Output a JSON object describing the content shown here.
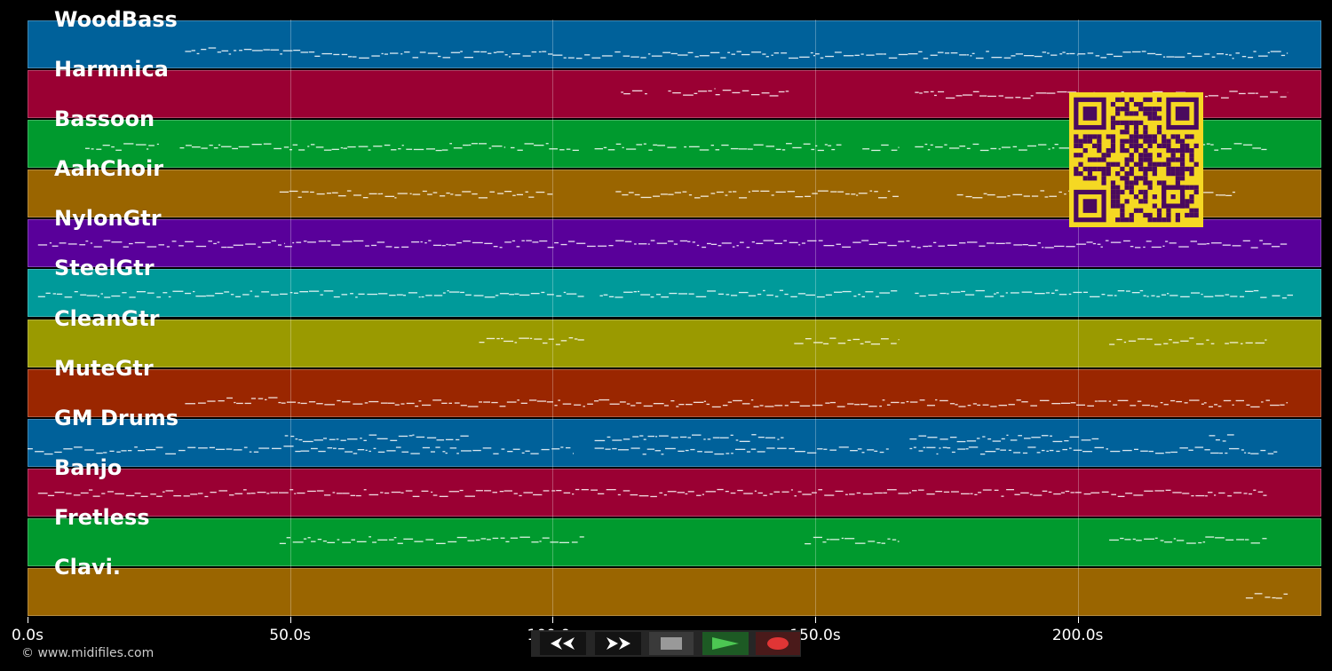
{
  "tracks": [
    {
      "name": "WoodBass",
      "color": "#00619a"
    },
    {
      "name": "Harmnica",
      "color": "#9a0033"
    },
    {
      "name": "Bassoon",
      "color": "#009a2e"
    },
    {
      "name": "AahChoir",
      "color": "#9a6500"
    },
    {
      "name": "NylonGtr",
      "color": "#59009a"
    },
    {
      "name": "SteelGtr",
      "color": "#009a9a"
    },
    {
      "name": "CleanGtr",
      "color": "#9a9a00"
    },
    {
      "name": "MuteGtr",
      "color": "#9a2600"
    },
    {
      "name": "GM Drums",
      "color": "#00619a"
    },
    {
      "name": "Banjo",
      "color": "#9a0033"
    },
    {
      "name": "Fretless",
      "color": "#009a2e"
    },
    {
      "name": "Clavi.",
      "color": "#9a6500"
    }
  ],
  "axis": {
    "ticks": [
      {
        "label": "0.0s",
        "seconds": 0
      },
      {
        "label": "50.0s",
        "seconds": 50
      },
      {
        "label": "100.0s",
        "seconds": 100
      },
      {
        "label": "150.0s",
        "seconds": 150
      },
      {
        "label": "200.0s",
        "seconds": 200
      }
    ],
    "max_seconds": 246.4
  },
  "note_regions": [
    [
      [
        30,
        52,
        0.62
      ],
      [
        52,
        100,
        0.7
      ],
      [
        100,
        150,
        0.7
      ],
      [
        150,
        200,
        0.7
      ],
      [
        200,
        240,
        0.7
      ]
    ],
    [
      [
        113,
        118,
        0.45
      ],
      [
        122,
        131,
        0.45
      ],
      [
        131,
        145,
        0.45
      ],
      [
        169,
        200,
        0.5
      ],
      [
        200,
        240,
        0.5
      ]
    ],
    [
      [
        11,
        25,
        0.55
      ],
      [
        29,
        84,
        0.55
      ],
      [
        84,
        91,
        0.55
      ],
      [
        92,
        105,
        0.55
      ],
      [
        108,
        124,
        0.55
      ],
      [
        125,
        155,
        0.55
      ],
      [
        159,
        166,
        0.55
      ],
      [
        169,
        200,
        0.55
      ],
      [
        200,
        236,
        0.55
      ]
    ],
    [
      [
        48,
        100,
        0.5
      ],
      [
        112,
        166,
        0.5
      ],
      [
        177,
        200,
        0.5
      ],
      [
        217,
        230,
        0.5
      ]
    ],
    [
      [
        2,
        49,
        0.5
      ],
      [
        49,
        210,
        0.5
      ],
      [
        210,
        240,
        0.5
      ]
    ],
    [
      [
        2,
        106,
        0.5
      ],
      [
        109,
        166,
        0.5
      ],
      [
        169,
        236,
        0.5
      ],
      [
        237,
        241,
        0.55
      ]
    ],
    [
      [
        86,
        106,
        0.45
      ],
      [
        146,
        166,
        0.45
      ],
      [
        206,
        226,
        0.45
      ],
      [
        228,
        236,
        0.45
      ]
    ],
    [
      [
        30,
        52,
        0.65
      ],
      [
        52,
        240,
        0.7
      ]
    ],
    [
      [
        0,
        44,
        0.65
      ],
      [
        44,
        52,
        0.6
      ],
      [
        49,
        84,
        0.4
      ],
      [
        52,
        104,
        0.65
      ],
      [
        108,
        144,
        0.4
      ],
      [
        108,
        164,
        0.65
      ],
      [
        168,
        204,
        0.4
      ],
      [
        168,
        238,
        0.65
      ],
      [
        225,
        230,
        0.4
      ]
    ],
    [
      [
        2,
        60,
        0.5
      ],
      [
        60,
        236,
        0.5
      ]
    ],
    [
      [
        48,
        106,
        0.45
      ],
      [
        148,
        166,
        0.45
      ],
      [
        206,
        236,
        0.45
      ]
    ],
    [
      [
        232,
        240,
        0.55
      ]
    ]
  ],
  "watermark": {
    "copyright": "© www.midifiles.com"
  },
  "controls": [
    {
      "name": "rewind",
      "icon": "rewind-icon"
    },
    {
      "name": "fast-forward",
      "icon": "fast-forward-icon"
    },
    {
      "name": "stop",
      "icon": "stop-icon"
    },
    {
      "name": "play",
      "icon": "play-icon"
    },
    {
      "name": "record",
      "icon": "record-icon"
    }
  ],
  "qr_code": {
    "fg": "#4a0a5e",
    "bg": "#f5d823"
  }
}
